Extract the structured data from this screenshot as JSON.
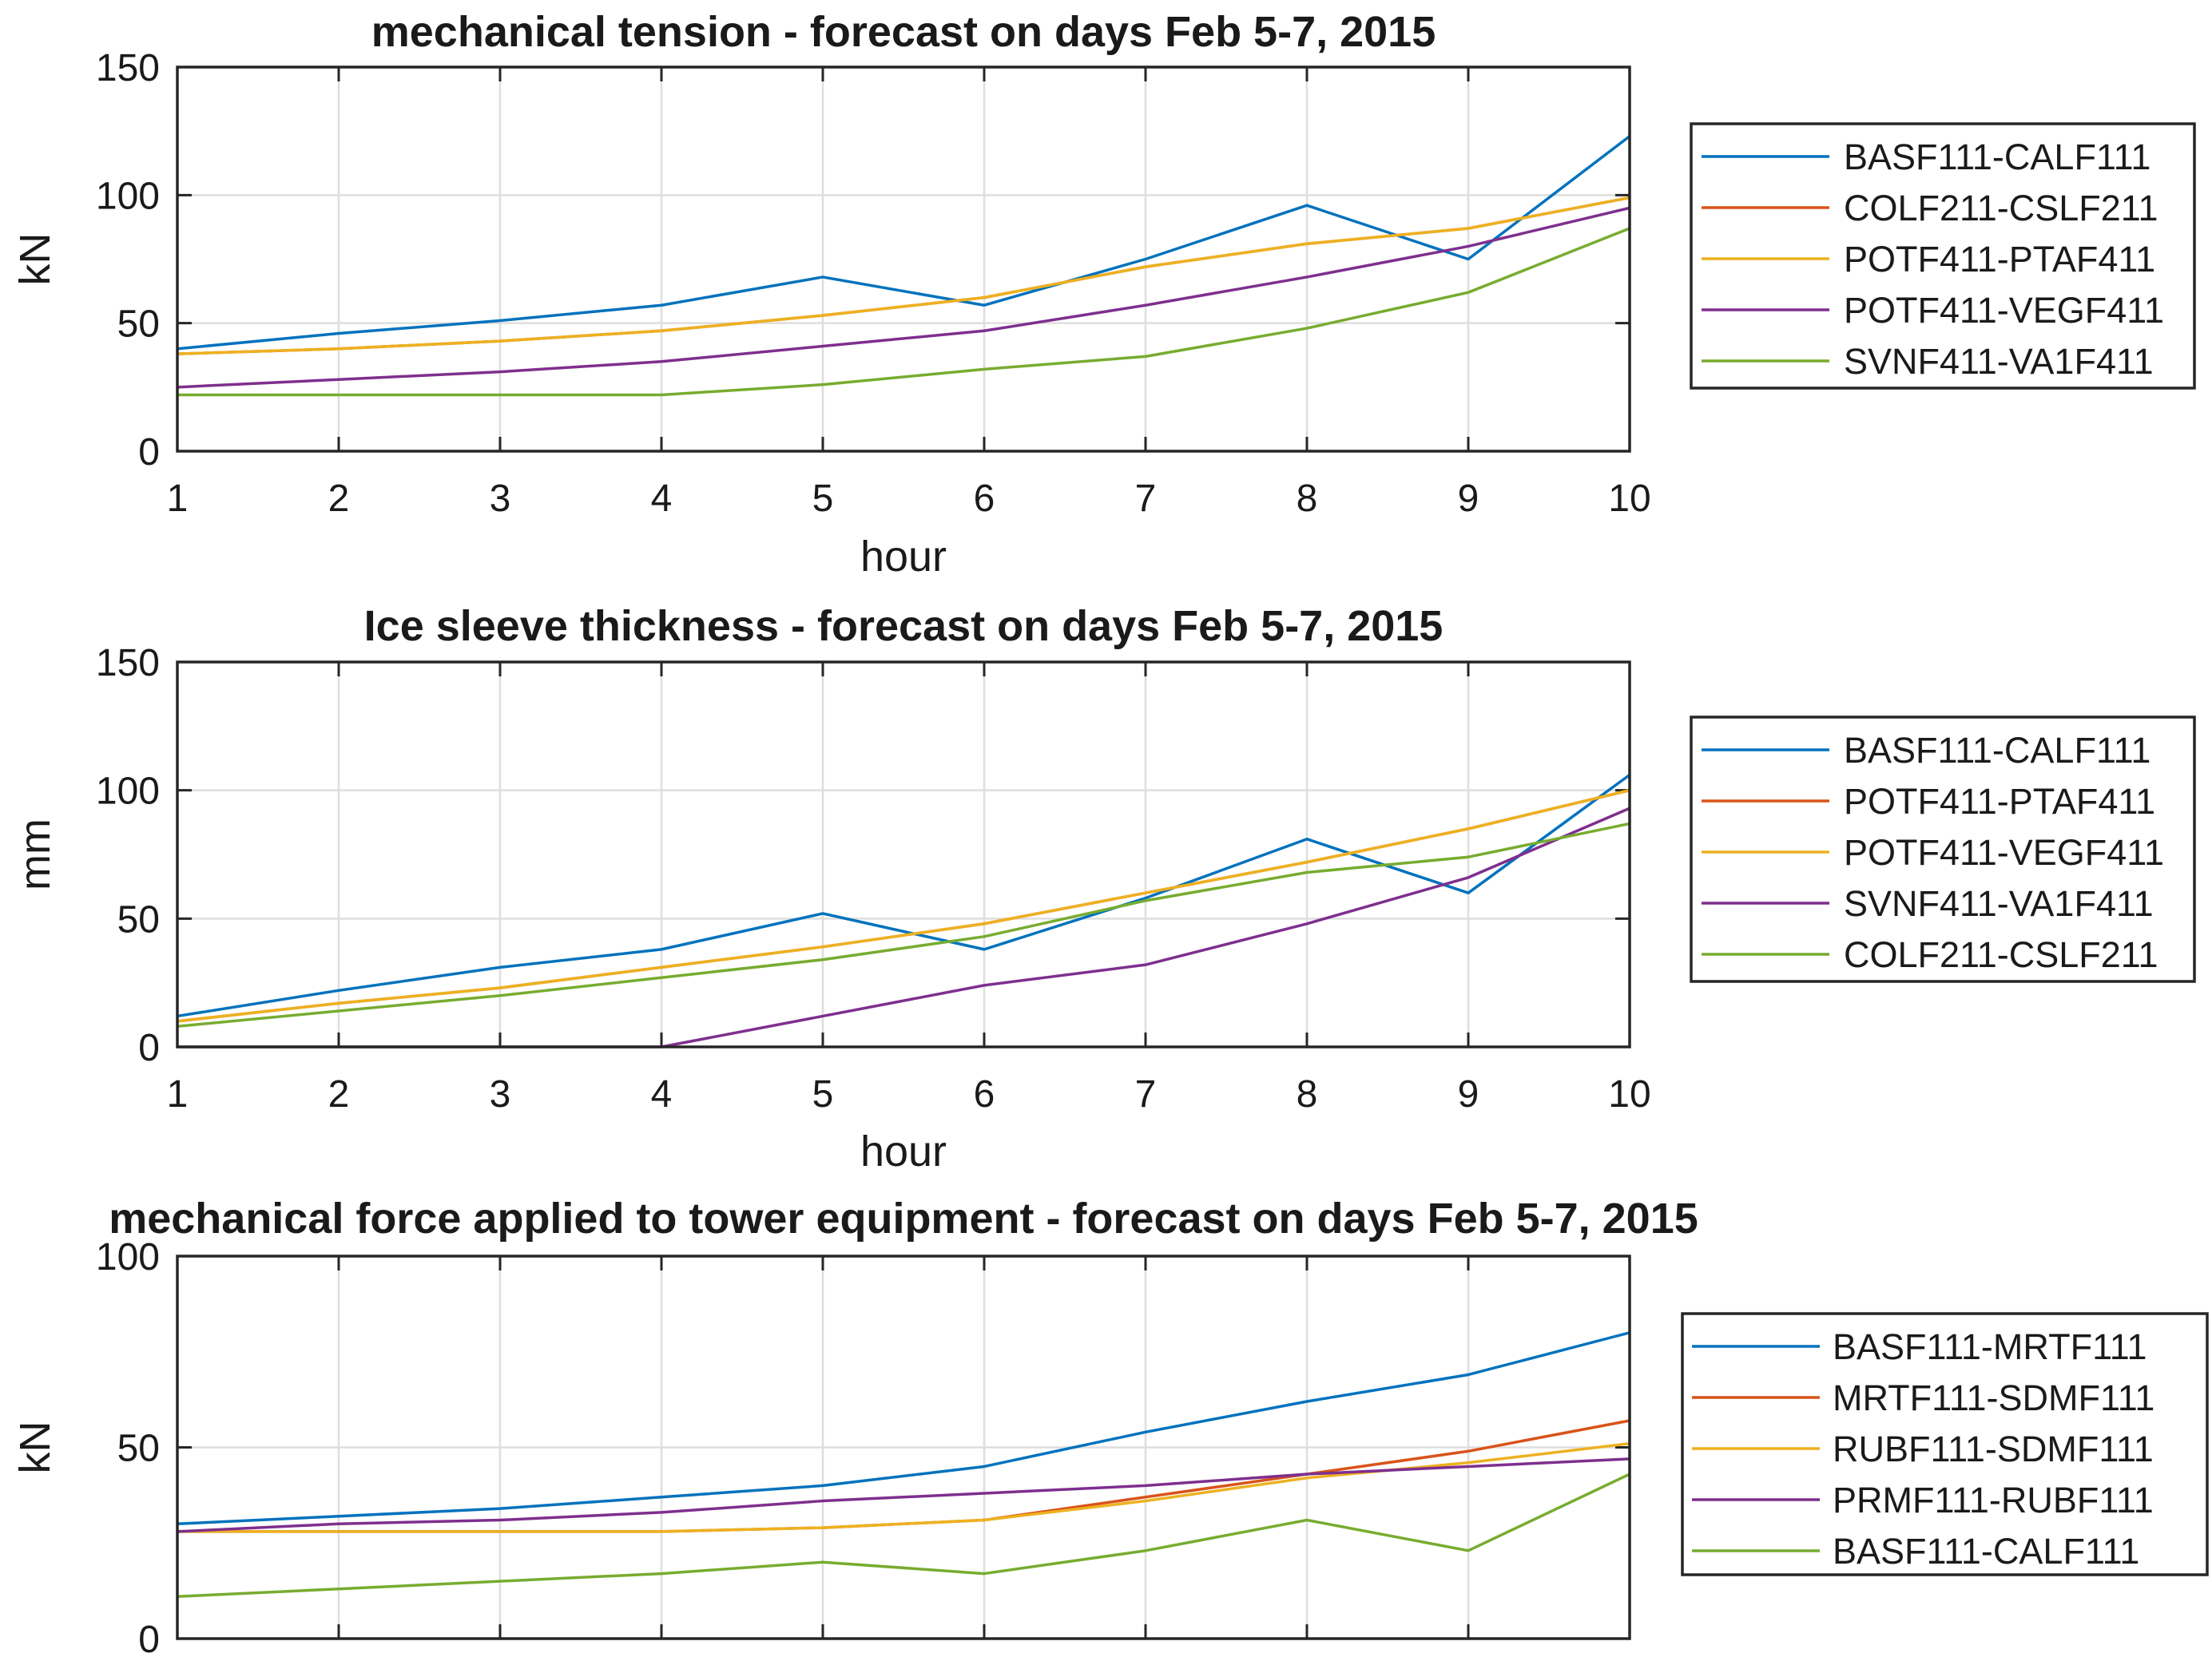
{
  "chart_data": [
    {
      "type": "line",
      "title": "mechanical tension - forecast on days Feb 5-7, 2015",
      "xlabel": "hour",
      "ylabel": "kN",
      "xlim": [
        1,
        10
      ],
      "ylim": [
        0,
        150
      ],
      "xticks": [
        "1",
        "2",
        "3",
        "4",
        "5",
        "6",
        "7",
        "8",
        "9",
        "10"
      ],
      "yticks": [
        "0",
        "50",
        "100",
        "150"
      ],
      "grid": true,
      "legend_position": "right",
      "x": [
        1,
        2,
        3,
        4,
        5,
        6,
        7,
        8,
        9,
        10
      ],
      "series": [
        {
          "name": "BASF111-CALF111",
          "color": "#0072BD",
          "values": [
            40,
            46,
            51,
            57,
            68,
            57,
            75,
            96,
            75,
            123
          ]
        },
        {
          "name": "COLF211-CSLF211",
          "color": "#D95319",
          "values": [
            38,
            40,
            43,
            47,
            53,
            60,
            72,
            81,
            87,
            99
          ]
        },
        {
          "name": "POTF411-PTAF411",
          "color": "#EDB120",
          "values": [
            38,
            40,
            43,
            47,
            53,
            60,
            72,
            81,
            87,
            99
          ]
        },
        {
          "name": "POTF411-VEGF411",
          "color": "#7E2F8E",
          "values": [
            25,
            28,
            31,
            35,
            41,
            47,
            57,
            68,
            80,
            95
          ]
        },
        {
          "name": "SVNF411-VA1F411",
          "color": "#77AC30",
          "values": [
            22,
            22,
            22,
            22,
            26,
            32,
            37,
            48,
            62,
            87
          ]
        }
      ]
    },
    {
      "type": "line",
      "title": "Ice sleeve thickness - forecast on days Feb 5-7, 2015",
      "xlabel": "hour",
      "ylabel": "mm",
      "xlim": [
        1,
        10
      ],
      "ylim": [
        0,
        150
      ],
      "xticks": [
        "1",
        "2",
        "3",
        "4",
        "5",
        "6",
        "7",
        "8",
        "9",
        "10"
      ],
      "yticks": [
        "0",
        "50",
        "100",
        "150"
      ],
      "grid": true,
      "legend_position": "right",
      "x": [
        1,
        2,
        3,
        4,
        5,
        6,
        7,
        8,
        9,
        10
      ],
      "series": [
        {
          "name": "BASF111-CALF111",
          "color": "#0072BD",
          "values": [
            12,
            22,
            31,
            38,
            52,
            38,
            58,
            81,
            60,
            106
          ]
        },
        {
          "name": "POTF411-PTAF411",
          "color": "#D95319",
          "values": [
            10,
            17,
            23,
            31,
            39,
            48,
            60,
            72,
            85,
            100
          ]
        },
        {
          "name": "POTF411-VEGF411",
          "color": "#EDB120",
          "values": [
            10,
            17,
            23,
            31,
            39,
            48,
            60,
            72,
            85,
            100
          ]
        },
        {
          "name": "SVNF411-VA1F411",
          "color": "#7E2F8E",
          "values": [
            0,
            0,
            0,
            0,
            12,
            24,
            32,
            48,
            66,
            93
          ]
        },
        {
          "name": "COLF211-CSLF211",
          "color": "#77AC30",
          "values": [
            8,
            14,
            20,
            27,
            34,
            43,
            57,
            68,
            74,
            87
          ]
        }
      ]
    },
    {
      "type": "line",
      "title": "mechanical force applied to tower equipment - forecast on days Feb 5-7, 2015",
      "xlabel": "",
      "ylabel": "kN",
      "xlim": [
        1,
        10
      ],
      "ylim": [
        0,
        100
      ],
      "xticks": [],
      "yticks": [
        "0",
        "50",
        "100"
      ],
      "grid": true,
      "legend_position": "right",
      "x": [
        1,
        2,
        3,
        4,
        5,
        6,
        7,
        8,
        9,
        10
      ],
      "series": [
        {
          "name": "BASF111-MRTF111",
          "color": "#0072BD",
          "values": [
            30,
            32,
            34,
            37,
            40,
            45,
            54,
            62,
            69,
            80
          ]
        },
        {
          "name": "MRTF111-SDMF111",
          "color": "#D95319",
          "values": [
            28,
            28,
            28,
            28,
            29,
            31,
            37,
            43,
            49,
            57
          ]
        },
        {
          "name": "RUBF111-SDMF111",
          "color": "#EDB120",
          "values": [
            28,
            28,
            28,
            28,
            29,
            31,
            36,
            42,
            46,
            51
          ]
        },
        {
          "name": "PRMF111-RUBF111",
          "color": "#7E2F8E",
          "values": [
            28,
            30,
            31,
            33,
            36,
            38,
            40,
            43,
            45,
            47
          ]
        },
        {
          "name": "BASF111-CALF111",
          "color": "#77AC30",
          "values": [
            11,
            13,
            15,
            17,
            20,
            17,
            23,
            31,
            23,
            43
          ]
        }
      ]
    }
  ]
}
